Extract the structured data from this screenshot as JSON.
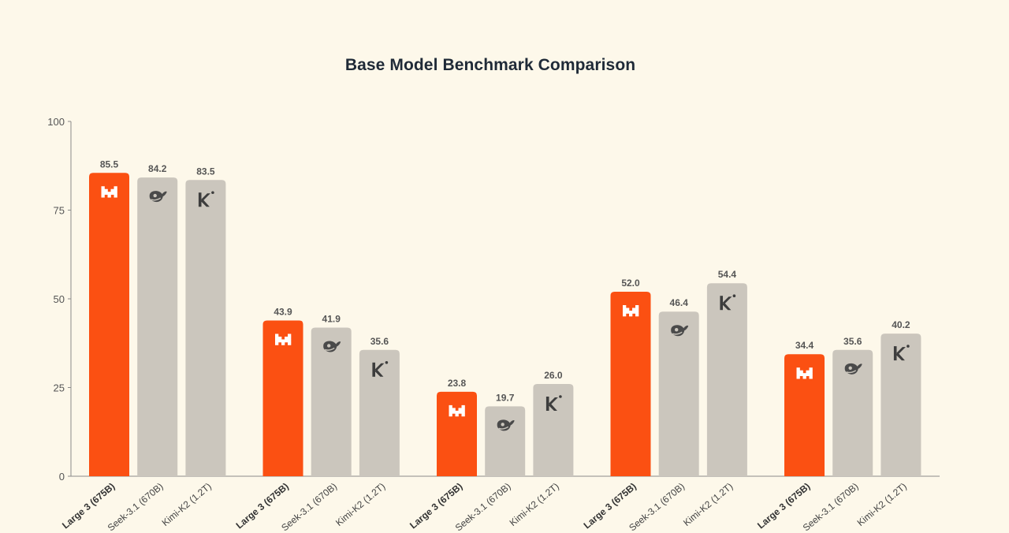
{
  "chart_data": {
    "type": "bar",
    "title": "Base Model Benchmark Comparison",
    "xlabel": "",
    "ylabel": "",
    "ylim": [
      0,
      100
    ],
    "yticks": [
      0,
      25,
      50,
      75,
      100
    ],
    "grid": false,
    "legend": "none",
    "series": [
      {
        "name": "Mistral Large 3 (675B)",
        "tick_label": "Large 3 (675B)",
        "color": "#fb5012",
        "icon": "mistral-icon",
        "values": [
          85.5,
          43.9,
          23.8,
          52.0,
          34.4
        ]
      },
      {
        "name": "DeepSeek-3.1 (670B)",
        "tick_label": "Seek-3.1 (670B)",
        "color": "#cbc6bd",
        "icon": "deepseek-whale-icon",
        "values": [
          84.2,
          41.9,
          19.7,
          46.4,
          35.6
        ]
      },
      {
        "name": "Kimi-K2 (1.2T)",
        "tick_label": "Kimi-K2 (1.2T)",
        "color": "#cbc6bd",
        "icon": "kimi-icon",
        "values": [
          83.5,
          35.6,
          26.0,
          54.4,
          40.2
        ]
      }
    ],
    "groups": 5,
    "value_labels": [
      [
        "85.5",
        "84.2",
        "83.5"
      ],
      [
        "43.9",
        "41.9",
        "35.6"
      ],
      [
        "23.8",
        "19.7",
        "26.0"
      ],
      [
        "52.0",
        "46.4",
        "54.4"
      ],
      [
        "34.4",
        "35.6",
        "40.2"
      ]
    ]
  }
}
